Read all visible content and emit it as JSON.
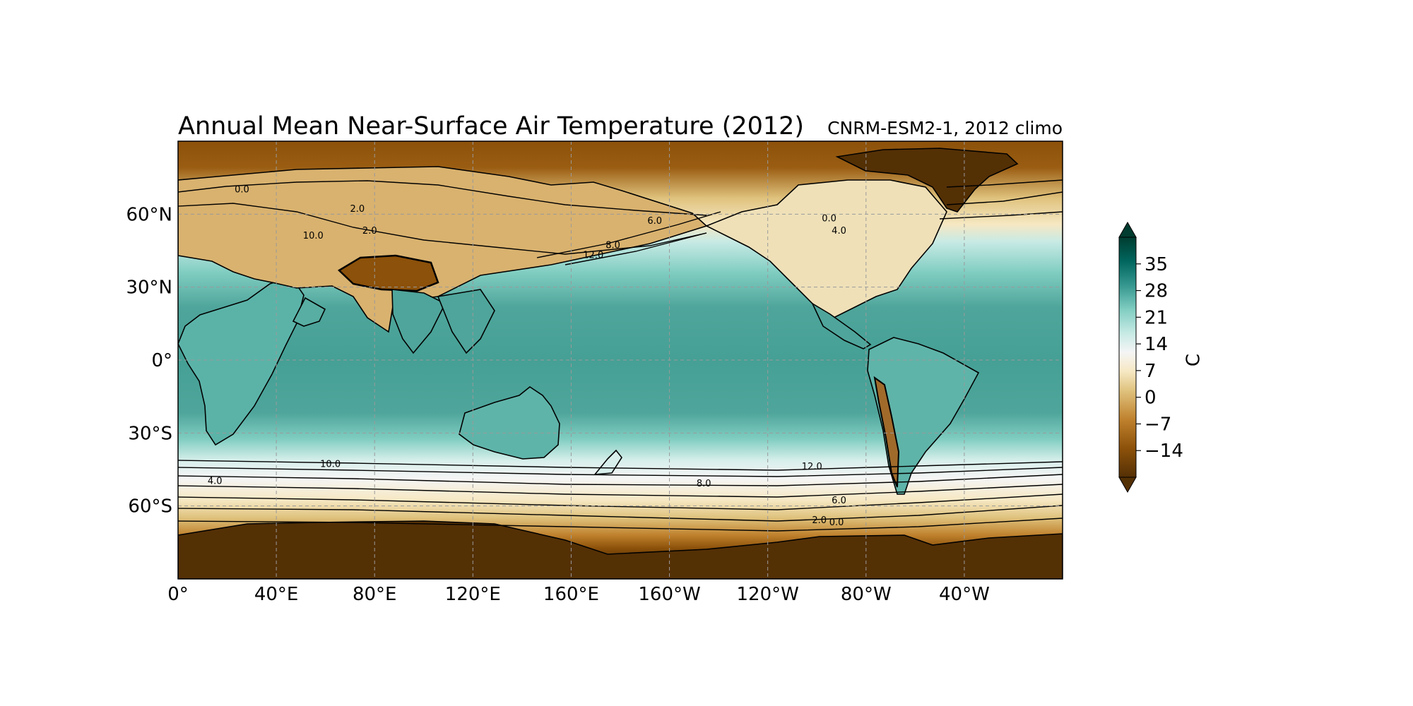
{
  "title": "Annual Mean Near-Surface Air Temperature (2012)",
  "subtitle": "CNRM-ESM2-1, 2012 climo",
  "colors": {
    "brown_dark": "#543005",
    "brown": "#8c510a",
    "tan": "#bf812d",
    "sand": "#dfc27d",
    "cream": "#f6e8c3",
    "white": "#f5f5f5",
    "mint": "#c7eae5",
    "teal_light": "#80cdc1",
    "teal": "#35978f",
    "teal_dark": "#01665e",
    "teal_darkest": "#003c30",
    "coast": "#000000",
    "grid": "#9a9a9a"
  },
  "chart_data": {
    "type": "heatmap",
    "projection": "PlateCarree",
    "lon_range": [
      0,
      360
    ],
    "lat_range": [
      -90,
      90
    ],
    "x_ticks": [
      "0°",
      "40°E",
      "80°E",
      "120°E",
      "160°E",
      "160°W",
      "120°W",
      "80°W",
      "40°W"
    ],
    "x_tick_values": [
      0,
      40,
      80,
      120,
      160,
      200,
      240,
      280,
      320
    ],
    "y_ticks": [
      "60°N",
      "30°N",
      "0°",
      "30°S",
      "60°S"
    ],
    "y_tick_values": [
      60,
      30,
      0,
      -30,
      -60
    ],
    "grid": true,
    "colorbar": {
      "label": "C",
      "ticks": [
        "35",
        "28",
        "21",
        "14",
        "7",
        "0",
        "−7",
        "−14"
      ],
      "tick_values": [
        35,
        28,
        21,
        14,
        7,
        0,
        -7,
        -14
      ],
      "vmin": -21,
      "vmax": 42,
      "extend": "both",
      "cmap": "BrBG"
    },
    "contour_labels": [
      {
        "text": "0.0",
        "lon": 26,
        "lat": 69
      },
      {
        "text": "2.0",
        "lon": 73,
        "lat": 61
      },
      {
        "text": "10.0",
        "lon": 55,
        "lat": 50
      },
      {
        "text": "2.0",
        "lon": 78,
        "lat": 52
      },
      {
        "text": "6.0",
        "lon": 194,
        "lat": 56
      },
      {
        "text": "8.0",
        "lon": 177,
        "lat": 46
      },
      {
        "text": "12.0",
        "lon": 169,
        "lat": 42
      },
      {
        "text": "0.0",
        "lon": 265,
        "lat": 57
      },
      {
        "text": "4.0",
        "lon": 269,
        "lat": 52
      },
      {
        "text": "10.0",
        "lon": 62,
        "lat": -44
      },
      {
        "text": "4.0",
        "lon": 15,
        "lat": -51
      },
      {
        "text": "8.0",
        "lon": 214,
        "lat": -52
      },
      {
        "text": "12.0",
        "lon": 258,
        "lat": -45
      },
      {
        "text": "6.0",
        "lon": 269,
        "lat": -59
      },
      {
        "text": "2.0",
        "lon": 261,
        "lat": -67
      },
      {
        "text": "0.0",
        "lon": 268,
        "lat": -68
      }
    ]
  }
}
